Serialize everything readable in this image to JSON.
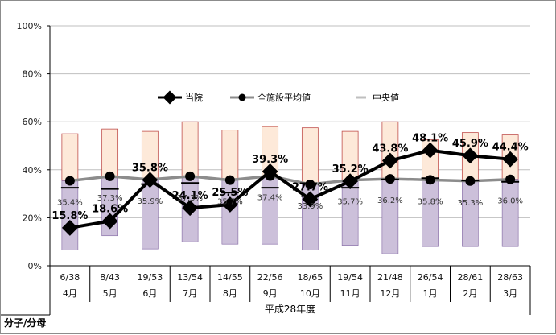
{
  "chart_data": {
    "type": "line",
    "ylim": [
      0,
      100
    ],
    "y_ticks": [
      "0%",
      "20%",
      "40%",
      "60%",
      "80%",
      "100%"
    ],
    "y_tick_values": [
      0,
      20,
      40,
      60,
      80,
      100
    ],
    "categories": [
      "4月",
      "5月",
      "6月",
      "7月",
      "8月",
      "9月",
      "10月",
      "11月",
      "12月",
      "1月",
      "2月",
      "3月"
    ],
    "fractions": [
      "6/38",
      "8/43",
      "19/53",
      "13/54",
      "14/55",
      "22/56",
      "18/65",
      "19/54",
      "21/48",
      "26/54",
      "28/61",
      "28/63"
    ],
    "group_label": "平成28年度",
    "row_label": "分子/分母",
    "range_bars": [
      {
        "low": 6.5,
        "high": 55.0
      },
      {
        "low": 12.5,
        "high": 57.0
      },
      {
        "low": 7.0,
        "high": 56.0
      },
      {
        "low": 10.0,
        "high": 60.0
      },
      {
        "low": 9.0,
        "high": 56.5
      },
      {
        "low": 9.0,
        "high": 58.0
      },
      {
        "low": 6.5,
        "high": 57.5
      },
      {
        "low": 8.5,
        "high": 56.0
      },
      {
        "low": 5.0,
        "high": 60.0
      },
      {
        "low": 8.0,
        "high": 52.5
      },
      {
        "low": 8.0,
        "high": 55.5
      },
      {
        "low": 8.0,
        "high": 54.5
      }
    ],
    "series": [
      {
        "name": "当院",
        "values": [
          15.8,
          18.6,
          35.8,
          24.1,
          25.5,
          39.3,
          27.7,
          35.2,
          43.8,
          48.1,
          45.9,
          44.4
        ],
        "labels": [
          "15.8%",
          "18.6%",
          "35.8%",
          "24.1%",
          "25.5%",
          "39.3%",
          "27.7%",
          "35.2%",
          "43.8%",
          "48.1%",
          "45.9%",
          "44.4%"
        ],
        "color": "#000000"
      },
      {
        "name": "全施設平均値",
        "values": [
          35.4,
          37.3,
          35.9,
          37.3,
          35.7,
          37.4,
          33.9,
          35.7,
          36.2,
          35.8,
          35.3,
          36.0
        ],
        "labels": [
          "35.4%",
          "37.3%",
          "35.9%",
          "37.3%",
          "35.7%",
          "37.4%",
          "33.9%",
          "35.7%",
          "36.2%",
          "35.8%",
          "35.3%",
          "36.0%"
        ],
        "color": "#8c8c8c"
      },
      {
        "name": "中央値",
        "values": [
          32.5,
          32.0,
          34.0,
          34.5,
          30.5,
          32.5,
          29.0,
          32.5,
          36.0,
          36.5,
          35.5,
          35.0
        ],
        "color": "#000000"
      }
    ],
    "colors": {
      "upper_fill": "#fde9d9",
      "lower_fill": "#ccc0da",
      "bar_border": "#c0504d",
      "grid": "#bfbfbf"
    }
  }
}
